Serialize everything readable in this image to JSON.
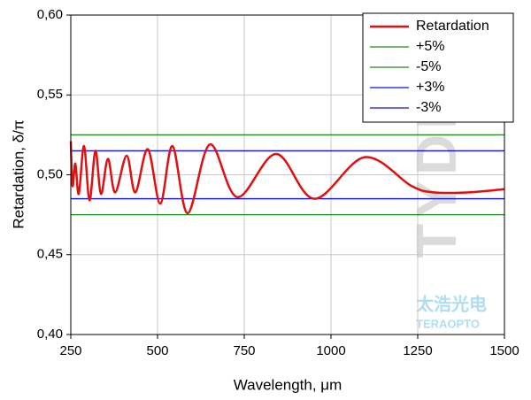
{
  "chart_data": {
    "type": "line",
    "xlabel": "Wavelength, μm",
    "ylabel": "Retardation, δ/π",
    "xlim": [
      250,
      1500
    ],
    "ylim": [
      0.4,
      0.6
    ],
    "xticks": [
      250,
      500,
      750,
      1000,
      1250,
      1500
    ],
    "yticks": [
      {
        "value": 0.4,
        "label": "0,40"
      },
      {
        "value": 0.45,
        "label": "0,45"
      },
      {
        "value": 0.5,
        "label": "0,50"
      },
      {
        "value": 0.55,
        "label": "0,55"
      },
      {
        "value": 0.6,
        "label": "0,60"
      }
    ],
    "grid": true,
    "legend": "upper right",
    "watermarks": [
      "TYDEX",
      "太浩光电",
      "TERAOPTO"
    ],
    "series": [
      {
        "name": "Retardation",
        "color": "#e01010",
        "x": [
          250,
          255,
          263,
          273,
          288,
          304,
          321,
          337,
          357,
          378,
          411,
          436,
          472,
          508,
          543,
          587,
          651,
          730,
          842,
          952,
          1097,
          1232,
          1296,
          1398,
          1500
        ],
        "values": [
          0.521,
          0.493,
          0.507,
          0.488,
          0.518,
          0.484,
          0.515,
          0.488,
          0.51,
          0.489,
          0.512,
          0.489,
          0.516,
          0.482,
          0.518,
          0.476,
          0.519,
          0.486,
          0.513,
          0.485,
          0.511,
          0.493,
          0.489,
          0.489,
          0.491
        ]
      },
      {
        "name": "+5%",
        "color": "#1a8a1a",
        "x": [
          250,
          1500
        ],
        "values": [
          0.525,
          0.525
        ]
      },
      {
        "name": "-5%",
        "color": "#1a8a1a",
        "x": [
          250,
          1500
        ],
        "values": [
          0.475,
          0.475
        ]
      },
      {
        "name": "+3%",
        "color": "#1010dd",
        "x": [
          250,
          1500
        ],
        "values": [
          0.515,
          0.515
        ]
      },
      {
        "name": "-3%",
        "color": "#1010dd",
        "x": [
          250,
          1500
        ],
        "values": [
          0.485,
          0.485
        ]
      }
    ]
  }
}
